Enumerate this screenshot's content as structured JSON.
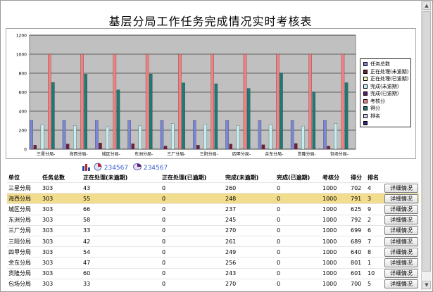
{
  "page_title": "基层分局工作任务完成情况实时考核表",
  "chart_data": {
    "type": "bar",
    "categories": [
      "三星分局-",
      "海西分局-",
      "城区分局-",
      "东洲分局-",
      "三厂分局-",
      "三阳分局-",
      "四甲分局-",
      "余东分局-",
      "货隆分局-",
      "包场分局-"
    ],
    "ylim": [
      0,
      1200
    ],
    "yticks": [
      0,
      200,
      400,
      600,
      800,
      1000,
      1200
    ],
    "series": [
      {
        "name": "任务总数",
        "color": "#7b86d6",
        "values": [
          303,
          303,
          303,
          303,
          303,
          303,
          303,
          303,
          303,
          303
        ]
      },
      {
        "name": "正在处理(未逾期)",
        "color": "#6f1d3c",
        "values": [
          43,
          55,
          66,
          58,
          33,
          42,
          54,
          47,
          60,
          33
        ]
      },
      {
        "name": "正在处理(已逾期)",
        "color": "#f5f5bf",
        "values": [
          0,
          0,
          0,
          0,
          0,
          0,
          0,
          0,
          0,
          0
        ]
      },
      {
        "name": "完成(未逾期)",
        "color": "#c4eef0",
        "values": [
          260,
          248,
          237,
          245,
          270,
          261,
          249,
          256,
          243,
          270
        ]
      },
      {
        "name": "完成(已逾期)",
        "color": "#5a1a6e",
        "values": [
          0,
          0,
          0,
          0,
          0,
          0,
          0,
          0,
          0,
          0
        ]
      },
      {
        "name": "考核分",
        "color": "#f47f80",
        "values": [
          1000,
          1000,
          1000,
          1000,
          1000,
          1000,
          1000,
          1000,
          1000,
          1000
        ]
      },
      {
        "name": "得分",
        "color": "#1c7a74",
        "values": [
          702,
          791,
          625,
          792,
          699,
          689,
          640,
          801,
          601,
          700
        ]
      },
      {
        "name": "排名",
        "color": "#d6d2f2",
        "values": [
          4,
          3,
          9,
          2,
          6,
          7,
          8,
          1,
          10,
          5
        ]
      },
      {
        "name": "",
        "color": "#2a2a7a",
        "values": [
          0,
          0,
          0,
          0,
          0,
          0,
          0,
          0,
          0,
          0
        ]
      }
    ]
  },
  "toolbar": {
    "pages_a": "234567",
    "pages_b": "234567"
  },
  "table": {
    "headers": [
      "单位",
      "任务总数",
      "正在处理(未逾期)",
      "正在处理(已逾期)",
      "完成(未逾期)",
      "完成(已逾期)",
      "考核分",
      "得分",
      "排名",
      ""
    ],
    "button_label": "详细情况",
    "rows": [
      [
        "三星分局",
        "303",
        "43",
        "0",
        "260",
        "0",
        "1000",
        "702",
        "4"
      ],
      [
        "海西分局",
        "303",
        "55",
        "0",
        "248",
        "0",
        "1000",
        "791",
        "3"
      ],
      [
        "城区分局",
        "303",
        "66",
        "0",
        "237",
        "0",
        "1000",
        "625",
        "9"
      ],
      [
        "东洲分局",
        "303",
        "58",
        "0",
        "245",
        "0",
        "1000",
        "792",
        "2"
      ],
      [
        "三厂分局",
        "303",
        "33",
        "0",
        "270",
        "0",
        "1000",
        "699",
        "6"
      ],
      [
        "三阳分局",
        "303",
        "42",
        "0",
        "261",
        "0",
        "1000",
        "689",
        "7"
      ],
      [
        "四甲分局",
        "303",
        "54",
        "0",
        "249",
        "0",
        "1000",
        "640",
        "8"
      ],
      [
        "余东分局",
        "303",
        "47",
        "0",
        "256",
        "0",
        "1000",
        "801",
        "1"
      ],
      [
        "货隆分局",
        "303",
        "60",
        "0",
        "243",
        "0",
        "1000",
        "601",
        "10"
      ],
      [
        "包场分局",
        "303",
        "33",
        "0",
        "270",
        "0",
        "1000",
        "700",
        "5"
      ]
    ],
    "selected_row": 1,
    "selected_color": "#f2dc8e"
  }
}
